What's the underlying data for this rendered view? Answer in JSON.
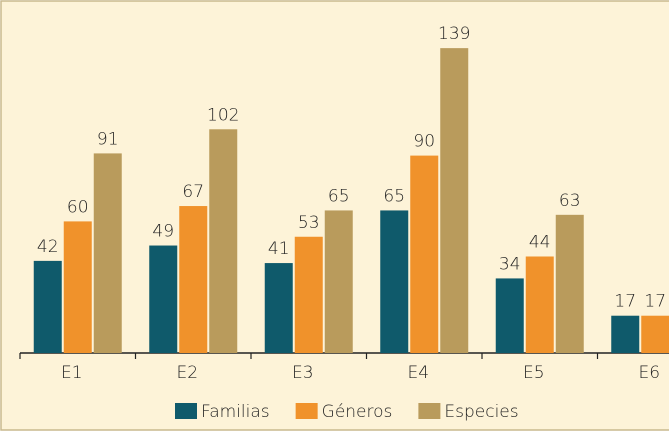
{
  "chart_data": {
    "type": "bar",
    "categories": [
      "E1",
      "E2",
      "E3",
      "E4",
      "E5",
      "E6"
    ],
    "series": [
      {
        "name": "Familias",
        "color": "#0f5a6b",
        "values": [
          42,
          49,
          41,
          65,
          34,
          17
        ]
      },
      {
        "name": "Géneros",
        "color": "#f0922b",
        "values": [
          60,
          67,
          53,
          90,
          44,
          17
        ]
      },
      {
        "name": "Especies",
        "color": "#b99b5c",
        "values": [
          91,
          102,
          65,
          139,
          63,
          null
        ]
      }
    ],
    "ylim": [
      0,
      150
    ],
    "grid": false,
    "legend": "bottom"
  }
}
